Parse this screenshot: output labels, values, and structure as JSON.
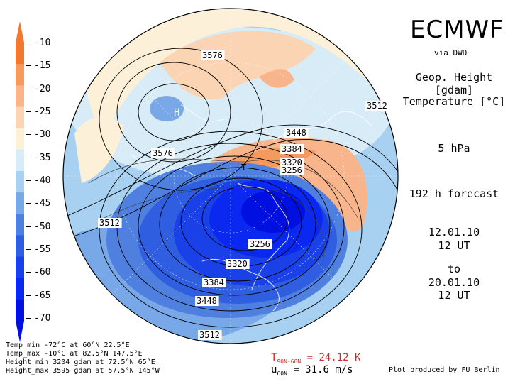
{
  "header": {
    "logo": "ECMWF",
    "source": "via DWD",
    "field1": "Geop. Height [gdam]",
    "field2": "Temperature [°C]",
    "level": "5 hPa",
    "forecast": "192 h forecast",
    "init_date": "12.01.10",
    "init_time": "12 UT",
    "to_label": "to",
    "valid_date": "20.01.10",
    "valid_time": "12 UT"
  },
  "legend": {
    "ticks": [
      "-10",
      "-15",
      "-20",
      "-25",
      "-30",
      "-35",
      "-40",
      "-45",
      "-50",
      "-55",
      "-60",
      "-65",
      "-70"
    ],
    "colors": [
      "#f07830",
      "#f59a5e",
      "#f8b48a",
      "#fbd4b4",
      "#fdf0d8",
      "#d8ecf8",
      "#a8d0f0",
      "#78a8e8",
      "#4f80e0",
      "#2f5ee0",
      "#1a40e8",
      "#0a28f0",
      "#0010e0"
    ]
  },
  "map": {
    "contour_labels": [
      "3576",
      "3576",
      "3512",
      "3448",
      "3384",
      "3320",
      "3256",
      "3512",
      "3256",
      "3320",
      "3384",
      "3448",
      "3512"
    ],
    "high_marker": "H",
    "low_marker": "T"
  },
  "stats": {
    "temp_min": "Temp_min -72°C at 60°N 22.5°E",
    "temp_max": "Temp_max -10°C at 82.5°N 147.5°E",
    "height_min": "Height_min 3204 gdam at 72.5°N 65°E",
    "height_max": "Height_max 3595 gdam at 57.5°N 145°W"
  },
  "indices": {
    "t_label": "T",
    "t_sub": "90N-60N",
    "t_value": "= 24.12 K",
    "u_label": "u",
    "u_sub": "60N",
    "u_value": "= 31.6 m/s"
  },
  "footer": {
    "credit": "Plot produced by FU Berlin"
  }
}
